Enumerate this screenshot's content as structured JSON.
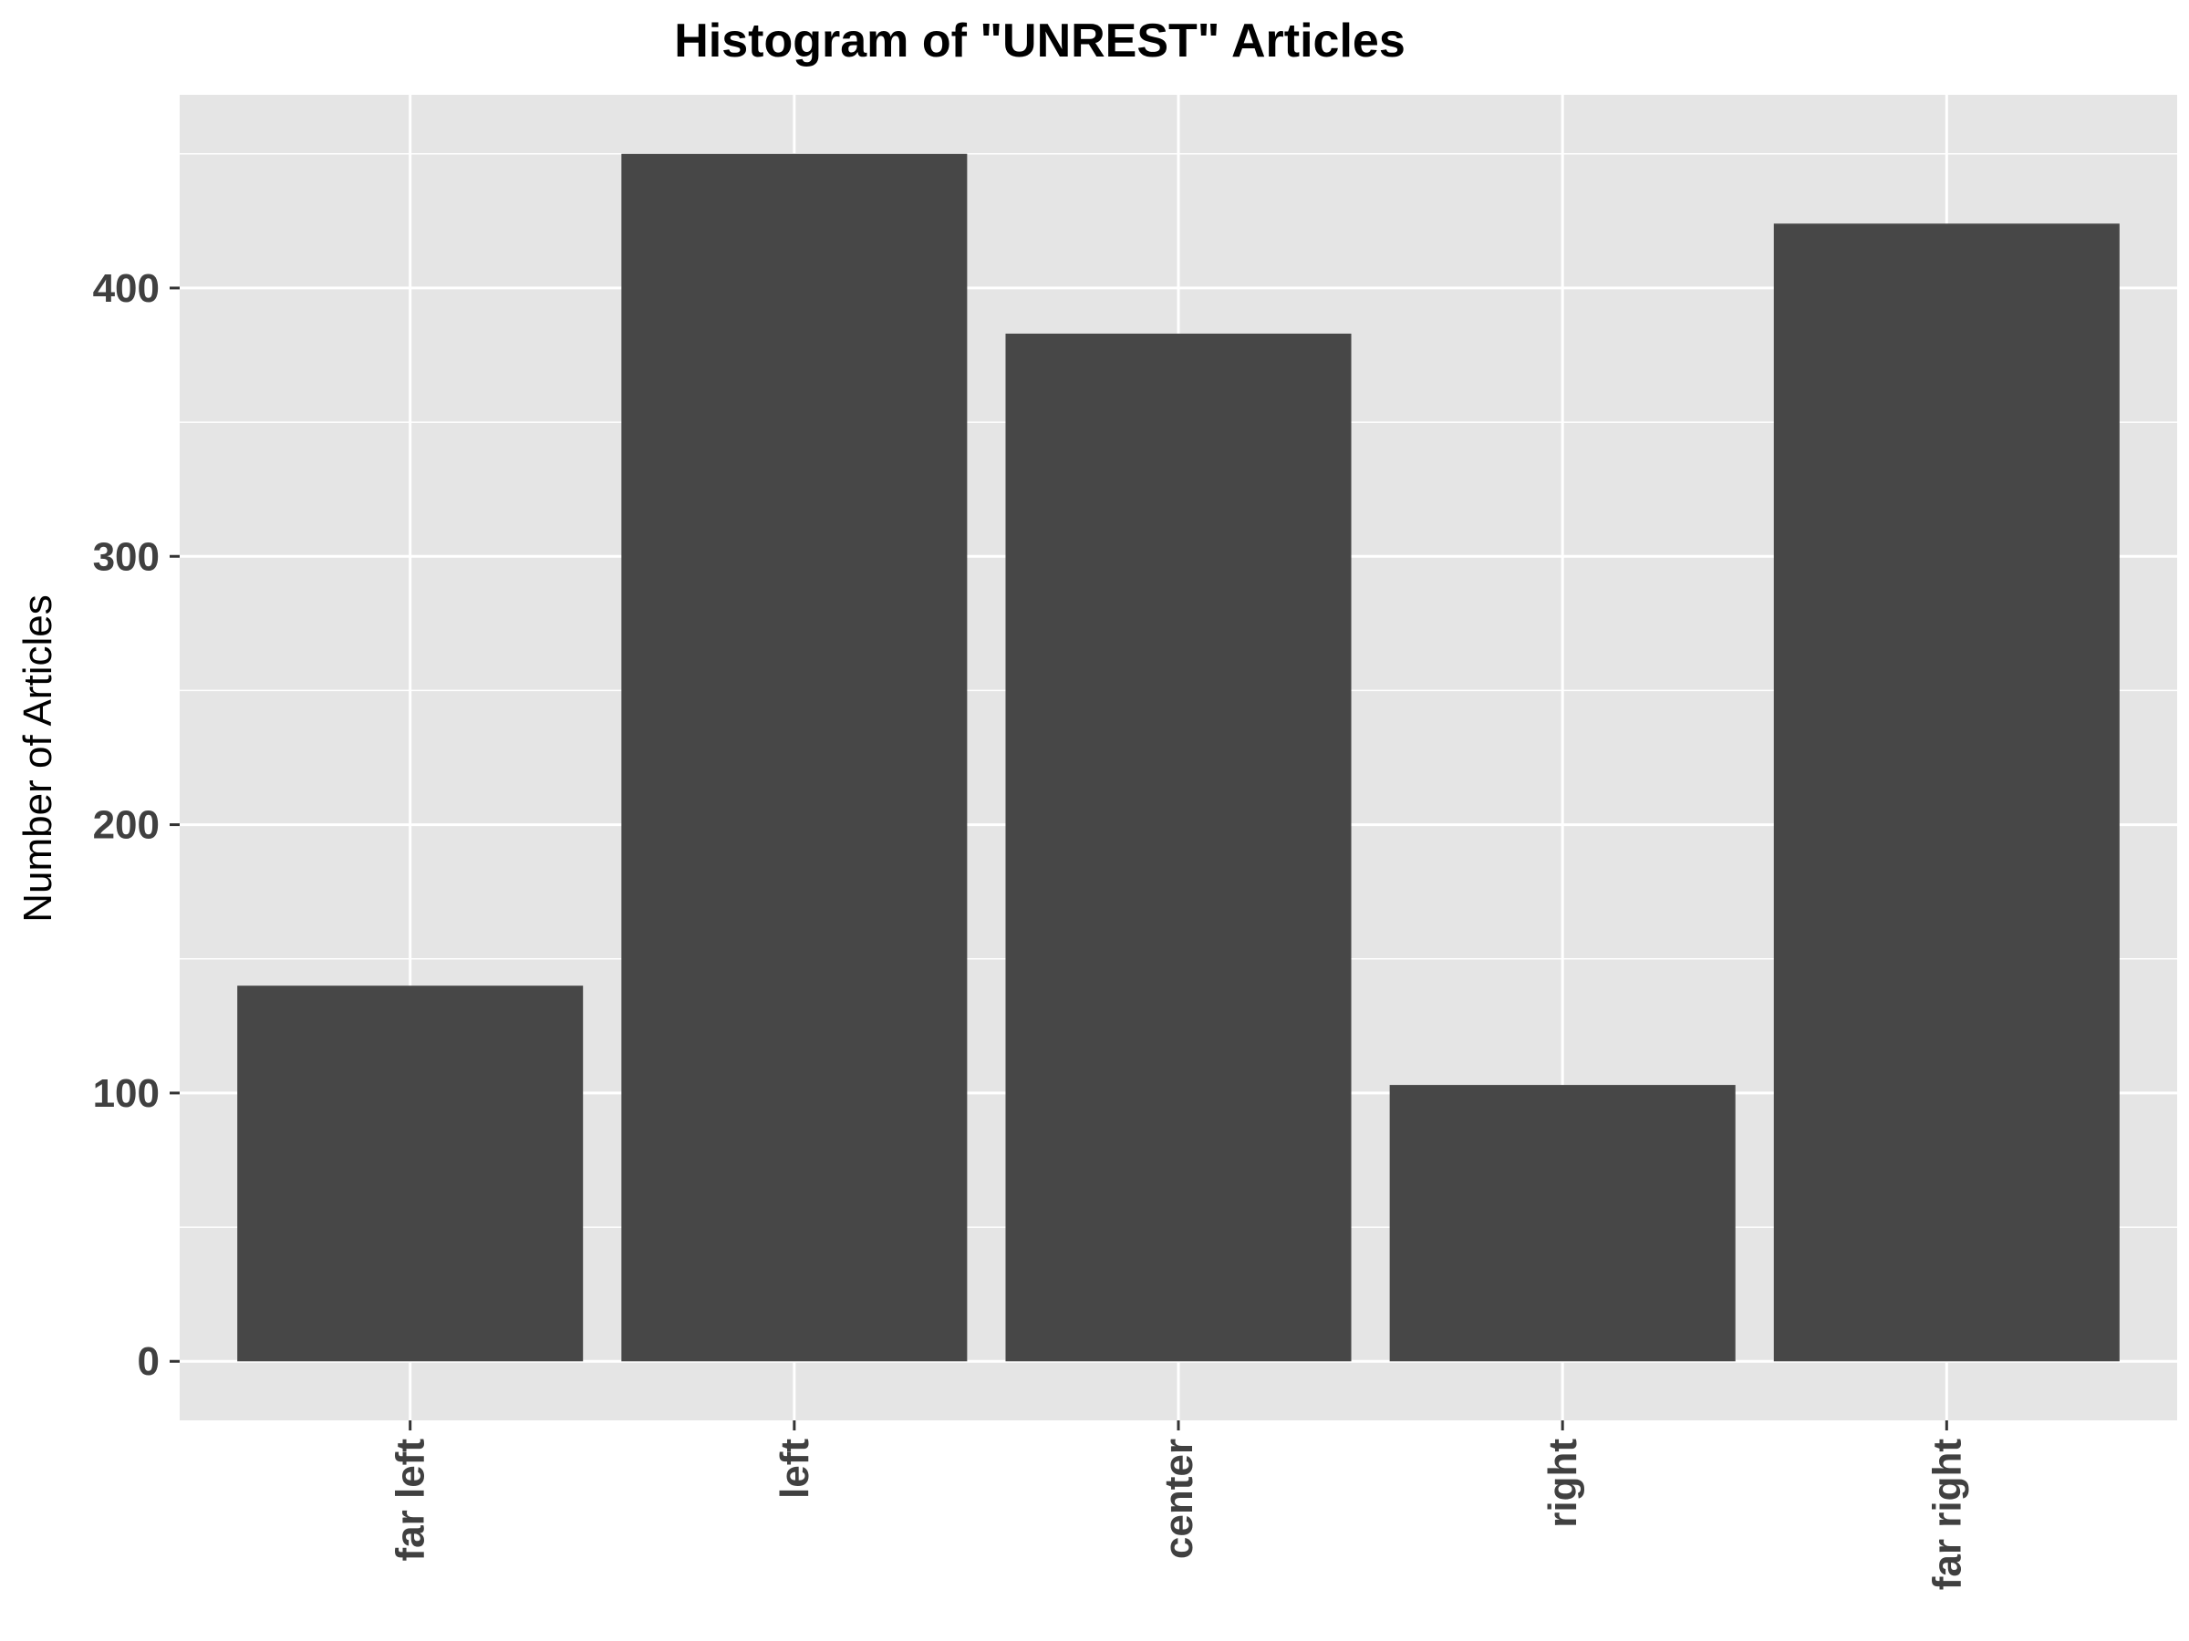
{
  "chart_data": {
    "type": "bar",
    "title": "Histogram of \"UNREST\" Articles",
    "xlabel": "",
    "ylabel": "Number of Articles",
    "categories": [
      "far left",
      "left",
      "center",
      "right",
      "far right"
    ],
    "values": [
      140,
      450,
      383,
      103,
      424
    ],
    "ylim": [
      -22,
      472
    ],
    "yticks": [
      0,
      100,
      200,
      300,
      400
    ],
    "grid": true,
    "colors": {
      "panel": "#e5e5e5",
      "grid": "#ffffff",
      "bar": "#474747",
      "tick_text": "#404040"
    }
  }
}
